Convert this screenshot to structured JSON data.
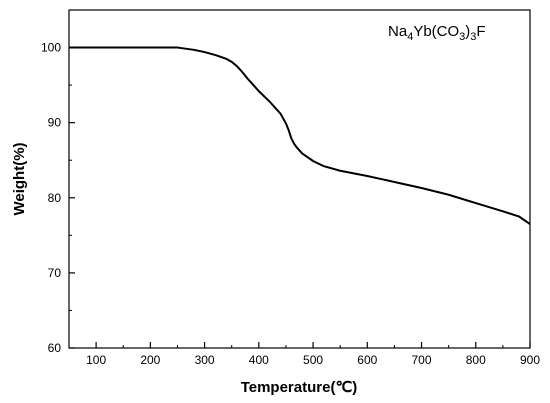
{
  "chart_data": {
    "type": "line",
    "title": "",
    "xlabel": "Temperature(℃)",
    "ylabel": "Weight(%)",
    "xlim": [
      50,
      900
    ],
    "ylim": [
      60,
      105
    ],
    "x_ticks": [
      100,
      200,
      300,
      400,
      500,
      600,
      700,
      800,
      900
    ],
    "y_ticks": [
      60,
      70,
      80,
      90,
      100
    ],
    "grid": false,
    "legend": {
      "position": "top-right",
      "parts": [
        {
          "text": "Na",
          "sub": false
        },
        {
          "text": "4",
          "sub": true
        },
        {
          "text": "Yb(CO",
          "sub": false
        },
        {
          "text": "3",
          "sub": true
        },
        {
          "text": ")",
          "sub": false
        },
        {
          "text": "3",
          "sub": true
        },
        {
          "text": "F",
          "sub": false
        }
      ]
    },
    "series": [
      {
        "name": "Na4Yb(CO3)3F",
        "color": "#000000",
        "x": [
          50,
          100,
          150,
          200,
          250,
          260,
          280,
          300,
          320,
          340,
          350,
          360,
          370,
          380,
          400,
          420,
          440,
          450,
          455,
          460,
          465,
          470,
          480,
          500,
          520,
          550,
          600,
          650,
          700,
          750,
          800,
          850,
          880,
          900
        ],
        "y": [
          100,
          100,
          100,
          100,
          100,
          99.9,
          99.7,
          99.4,
          99.0,
          98.5,
          98.1,
          97.5,
          96.7,
          95.8,
          94.2,
          92.8,
          91.2,
          89.9,
          89.0,
          87.9,
          87.2,
          86.7,
          85.9,
          84.9,
          84.2,
          83.6,
          82.9,
          82.1,
          81.3,
          80.4,
          79.3,
          78.2,
          77.5,
          76.5
        ]
      }
    ]
  }
}
